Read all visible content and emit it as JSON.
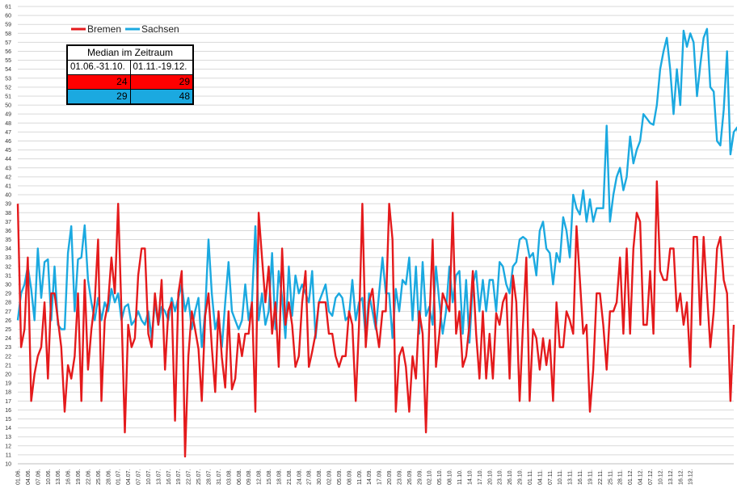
{
  "chart_data": {
    "type": "line",
    "title": "",
    "xlabel": "",
    "ylabel": "",
    "ylim": [
      10,
      61
    ],
    "grid": true,
    "legend_position": "top-left",
    "x_start": "01.06.",
    "x_tick_labels": [
      "01.06.",
      "04.06.",
      "07.06.",
      "10.06.",
      "13.06.",
      "16.06.",
      "19.06.",
      "22.06.",
      "25.06.",
      "28.06.",
      "01.07.",
      "04.07.",
      "07.07.",
      "10.07.",
      "13.07.",
      "16.07.",
      "19.07.",
      "22.07.",
      "25.07.",
      "28.07.",
      "31.07.",
      "03.08.",
      "06.08.",
      "09.08.",
      "12.08.",
      "15.08.",
      "18.08.",
      "21.08.",
      "24.08.",
      "27.08.",
      "30.08.",
      "02.09.",
      "05.09.",
      "08.09.",
      "11.09.",
      "14.09.",
      "17.09.",
      "20.09.",
      "23.09.",
      "26.09.",
      "29.09.",
      "02.10.",
      "05.10.",
      "08.10.",
      "11.10.",
      "14.10.",
      "17.10.",
      "20.10.",
      "23.10.",
      "26.10.",
      "29.10.",
      "01.11.",
      "04.11.",
      "07.11.",
      "10.11.",
      "13.11.",
      "16.11.",
      "19.11.",
      "22.11.",
      "25.11.",
      "28.11.",
      "01.12.",
      "04.12.",
      "07.12.",
      "10.12.",
      "13.12.",
      "16.12.",
      "19.12."
    ],
    "series": [
      {
        "name": "Bremen",
        "color": "#e41a1c",
        "values": [
          39,
          23,
          25,
          33,
          17,
          20,
          22,
          23,
          28,
          19.5,
          29,
          29,
          26,
          23,
          15.8,
          21,
          19.5,
          22,
          29,
          17,
          30.5,
          20.5,
          25,
          28,
          35,
          17,
          26,
          28,
          33,
          29,
          39,
          27,
          13.5,
          25.5,
          23,
          24,
          31,
          34,
          34,
          24.5,
          23,
          29,
          25.5,
          30.5,
          20.5,
          27,
          28,
          14.8,
          29,
          31.5,
          10.8,
          22,
          27,
          25,
          22.8,
          17,
          26.5,
          29,
          23,
          18,
          27,
          21.8,
          18.5,
          27,
          18.3,
          19.5,
          24.5,
          22,
          24.5,
          24.5,
          28,
          15.8,
          38,
          33,
          28,
          32,
          24.5,
          28,
          20.8,
          34,
          25.5,
          28,
          25.5,
          20.8,
          22,
          28,
          31.5,
          20.8,
          22.5,
          24.5,
          28,
          28,
          28,
          24.5,
          24.5,
          22,
          20.8,
          22,
          22,
          27,
          25.5,
          17,
          25.5,
          39,
          23,
          28,
          29.5,
          25.5,
          23,
          27,
          27,
          39,
          35,
          15.8,
          22,
          23,
          20.8,
          15.8,
          22,
          19.5,
          27,
          24.5,
          13.5,
          25.5,
          35,
          20.8,
          24.5,
          29,
          28,
          27,
          38,
          24.5,
          27,
          20.8,
          22,
          25.5,
          31.5,
          24.5,
          19.5,
          27,
          19.5,
          24.5,
          19.5,
          26.8,
          25.5,
          28,
          29,
          19.5,
          31,
          28,
          17,
          25.5,
          33,
          17,
          25,
          24,
          20.5,
          24,
          21,
          23.8,
          17,
          28,
          23,
          23,
          27,
          26,
          24.5,
          36.5,
          30.5,
          24.5,
          25.5,
          15.8,
          20.5,
          29,
          29,
          25.5,
          20.5,
          27,
          27,
          28,
          33,
          24.5,
          34,
          24.5,
          34,
          38,
          37,
          25.5,
          25.5,
          31.5,
          24.5,
          41.5,
          31.5,
          30.5,
          30.5,
          34,
          34,
          27,
          29,
          25.5,
          28,
          20.8,
          35.3,
          35.3,
          25.5,
          35.3,
          29,
          23,
          27,
          34,
          35.3,
          30.5,
          29,
          17,
          25.5
        ]
      },
      {
        "name": "Sachsen",
        "color": "#1ba9e0",
        "values": [
          26,
          29,
          30,
          32,
          29.5,
          26,
          34,
          28.5,
          32.5,
          32.8,
          26,
          32,
          25.5,
          25,
          25,
          33.5,
          36.5,
          27,
          32.8,
          33,
          36.6,
          30.5,
          28,
          26,
          28.5,
          26,
          28,
          27,
          29.5,
          28,
          29,
          26,
          27.5,
          27.8,
          25.5,
          26,
          27,
          26,
          25.5,
          27,
          24,
          28,
          25.5,
          27.5,
          27,
          26,
          28.5,
          27,
          28.5,
          30,
          27,
          28.5,
          25,
          27,
          28.5,
          23,
          27,
          35,
          29,
          25,
          26.5,
          23,
          28,
          32.5,
          27,
          26,
          25,
          26,
          30,
          26,
          28,
          36.5,
          26,
          29,
          25.5,
          27,
          33.5,
          25,
          31.5,
          28.5,
          24,
          32,
          26.5,
          31,
          29,
          30,
          29,
          28,
          31.5,
          24,
          28,
          29,
          30,
          27,
          26.5,
          28.5,
          29,
          28.5,
          26,
          26.5,
          30.5,
          26,
          28,
          28.5,
          24,
          29,
          27,
          25,
          29,
          33,
          29,
          29,
          24,
          29.5,
          27,
          30.5,
          30,
          33,
          26,
          32,
          24.5,
          32.5,
          26.5,
          27.5,
          25.5,
          32,
          28,
          24.5,
          27,
          32,
          28,
          31,
          31.5,
          24.5,
          30.5,
          23.5,
          30,
          31.5,
          27,
          30.5,
          27,
          30.5,
          30.5,
          27,
          32.5,
          32,
          30,
          29,
          32,
          32.5,
          35,
          35.3,
          35,
          33,
          33.5,
          31,
          36,
          37,
          34,
          33.5,
          30,
          33.5,
          32.5,
          37.5,
          36,
          33,
          40,
          38.5,
          37.8,
          40.5,
          37,
          39.5,
          37,
          38.5,
          38.5,
          38.5,
          47.7,
          37,
          40,
          42,
          43,
          40.5,
          42,
          46.5,
          43.5,
          45,
          46,
          49,
          48.5,
          48,
          47.8,
          50,
          54,
          56,
          57.5,
          54,
          49,
          54,
          50,
          58.3,
          56.5,
          58,
          57,
          51,
          54.5,
          57.5,
          58.5,
          52,
          51.5,
          46,
          45.5,
          49.5,
          56,
          44.5,
          47,
          47.5,
          45,
          44
        ]
      }
    ]
  },
  "legend": {
    "items": [
      {
        "label": "Bremen",
        "color": "#e41a1c"
      },
      {
        "label": "Sachsen",
        "color": "#1ba9e0"
      }
    ]
  },
  "median_table": {
    "title": "Median im Zeitraum",
    "col1": "01.06.-31.10.",
    "col2": "01.11.-19.12.",
    "bremen": {
      "v1": "24",
      "v2": "29",
      "color": "#ff0000"
    },
    "sachsen": {
      "v1": "29",
      "v2": "48",
      "color": "#1ba9e0"
    }
  }
}
